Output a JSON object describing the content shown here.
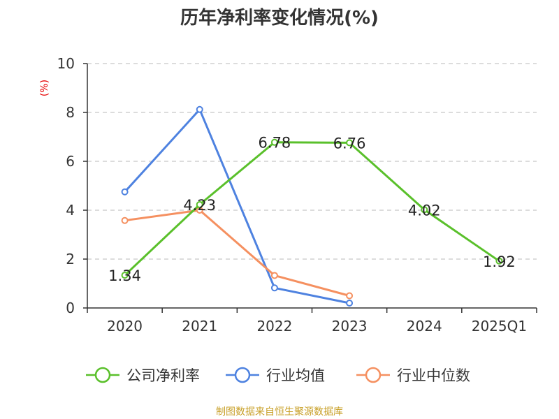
{
  "chart_data": {
    "type": "line",
    "title": "历年净利率变化情况(%)",
    "ylabel": "(%)",
    "categories": [
      "2020",
      "2021",
      "2022",
      "2023",
      "2024",
      "2025Q1"
    ],
    "ylim": [
      0,
      10
    ],
    "yticks": [
      0,
      2,
      4,
      6,
      8,
      10
    ],
    "grid": true,
    "legend_position": "bottom",
    "series": [
      {
        "name": "公司净利率",
        "color": "#5ac02b",
        "values": [
          1.34,
          4.23,
          6.78,
          6.76,
          4.02,
          1.92
        ],
        "labels": [
          "1.34",
          "4.23",
          "6.78",
          "6.76",
          "4.02",
          "1.92"
        ]
      },
      {
        "name": "行业均值",
        "color": "#4e82e0",
        "values": [
          4.75,
          8.12,
          0.82,
          0.2,
          null,
          null
        ]
      },
      {
        "name": "行业中位数",
        "color": "#f59060",
        "values": [
          3.58,
          4.0,
          1.33,
          0.5,
          null,
          null
        ]
      }
    ]
  },
  "source": "制图数据来自恒生聚源数据库"
}
